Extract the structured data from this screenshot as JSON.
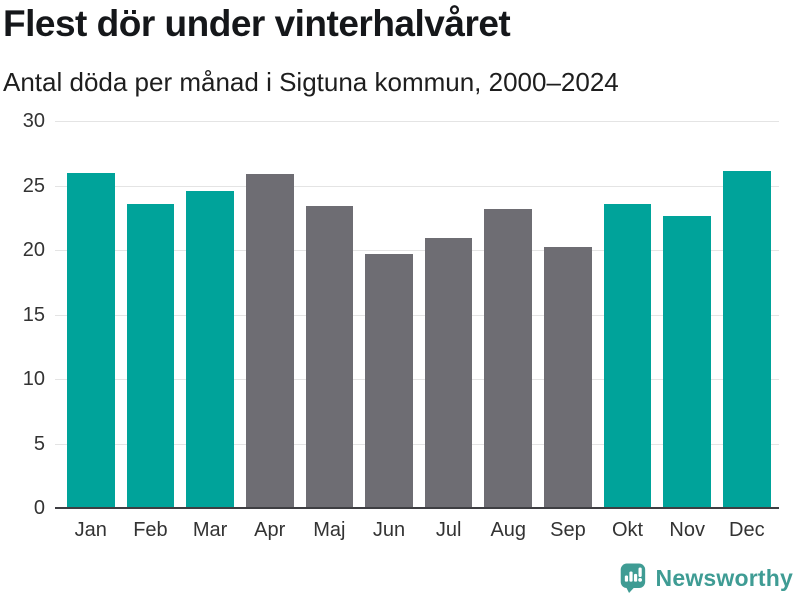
{
  "header": {
    "title": "Flest dör under vinterhalvåret",
    "subtitle": "Antal döda per månad i Sigtuna kommun, 2000–2024"
  },
  "chart_data": {
    "type": "bar",
    "title": "Flest dör under vinterhalvåret",
    "subtitle": "Antal döda per månad i Sigtuna kommun, 2000–2024",
    "categories": [
      "Jan",
      "Feb",
      "Mar",
      "Apr",
      "Maj",
      "Jun",
      "Jul",
      "Aug",
      "Sep",
      "Okt",
      "Nov",
      "Dec"
    ],
    "values": [
      26.0,
      23.6,
      24.6,
      25.9,
      23.4,
      19.7,
      20.9,
      23.2,
      20.2,
      23.6,
      22.6,
      26.1
    ],
    "highlighted": [
      true,
      true,
      true,
      false,
      false,
      false,
      false,
      false,
      false,
      true,
      true,
      true
    ],
    "colors": {
      "highlight": "#00a39a",
      "default": "#6e6d73",
      "gridline": "#e4e4e4",
      "axis_line": "#3e3e42",
      "tick_text": "#333333"
    },
    "xlabel": "",
    "ylabel": "",
    "ylim": [
      0,
      30
    ],
    "yticks": [
      0,
      5,
      10,
      15,
      20,
      25,
      30
    ],
    "grid": true,
    "legend": "none"
  },
  "footer": {
    "brand": "Newsworthy",
    "brand_color": "#3f9c94",
    "logo_icon": "speech-bubble-bar-chart-exclamation",
    "logo_bar_color": "#ffffff"
  }
}
